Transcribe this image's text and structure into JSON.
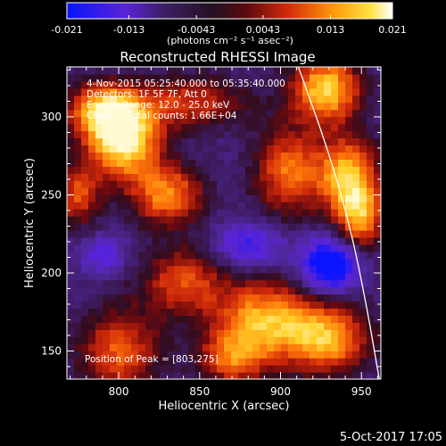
{
  "colorbar": {
    "tick_labels": [
      "-0.021",
      "-0.013",
      "-0.0043",
      "0.0043",
      "0.013",
      "0.021"
    ],
    "tick_values": [
      -0.021,
      -0.013,
      -0.0043,
      0.0043,
      0.013,
      0.021
    ],
    "range": [
      -0.021,
      0.021
    ],
    "units_label": "(photons cm⁻² s⁻¹ asec⁻²)"
  },
  "chart_data": {
    "type": "heatmap",
    "title": "Reconstructed RHESSI Image",
    "xlabel": "Heliocentric X (arcsec)",
    "ylabel": "Heliocentric Y (arcsec)",
    "xlim": [
      768,
      962
    ],
    "ylim": [
      132,
      332
    ],
    "xticks": [
      800,
      850,
      900,
      950
    ],
    "yticks": [
      150,
      200,
      250,
      300
    ],
    "annotations": [
      "4-Nov-2015 05:25:40.000 to 05:35:40.000",
      "Detectors: 1F 5F 7F, Att 0",
      "Energy Range: 12.0 - 25.0 keV",
      "Clean     Total counts: 1.66E+04"
    ],
    "peak_label": "Position of Peak = [803,275]",
    "peak": [
      803,
      275
    ],
    "sources": [
      {
        "x": 803,
        "y": 285,
        "sx": 16,
        "sy": 17,
        "amp": 1.0
      },
      {
        "x": 790,
        "y": 305,
        "sx": 16,
        "sy": 12,
        "amp": 0.75
      },
      {
        "x": 830,
        "y": 250,
        "sx": 16,
        "sy": 14,
        "amp": 0.7
      },
      {
        "x": 775,
        "y": 250,
        "sx": 10,
        "sy": 14,
        "amp": 0.55
      },
      {
        "x": 845,
        "y": 310,
        "sx": 25,
        "sy": 12,
        "amp": 0.5
      },
      {
        "x": 928,
        "y": 318,
        "sx": 15,
        "sy": 15,
        "amp": 0.9
      },
      {
        "x": 942,
        "y": 262,
        "sx": 13,
        "sy": 18,
        "amp": 0.85
      },
      {
        "x": 905,
        "y": 265,
        "sx": 15,
        "sy": 20,
        "amp": 0.65
      },
      {
        "x": 950,
        "y": 235,
        "sx": 10,
        "sy": 14,
        "amp": 0.65
      },
      {
        "x": 890,
        "y": 170,
        "sx": 22,
        "sy": 18,
        "amp": 0.8
      },
      {
        "x": 930,
        "y": 158,
        "sx": 18,
        "sy": 16,
        "amp": 0.75
      },
      {
        "x": 840,
        "y": 195,
        "sx": 18,
        "sy": 16,
        "amp": 0.55
      },
      {
        "x": 800,
        "y": 150,
        "sx": 18,
        "sy": 20,
        "amp": 0.6
      },
      {
        "x": 870,
        "y": 145,
        "sx": 15,
        "sy": 12,
        "amp": 0.55
      },
      {
        "x": 790,
        "y": 212,
        "sx": 10,
        "sy": 8,
        "amp": -0.35
      },
      {
        "x": 880,
        "y": 218,
        "sx": 15,
        "sy": 10,
        "amp": -0.45
      },
      {
        "x": 930,
        "y": 205,
        "sx": 12,
        "sy": 12,
        "amp": -0.8
      }
    ],
    "limb_curve": [
      [
        911,
        332
      ],
      [
        929,
        280
      ],
      [
        943,
        230
      ],
      [
        953,
        180
      ],
      [
        961,
        132
      ]
    ]
  },
  "footer": {
    "timestamp": "5-Oct-2017 17:05"
  }
}
